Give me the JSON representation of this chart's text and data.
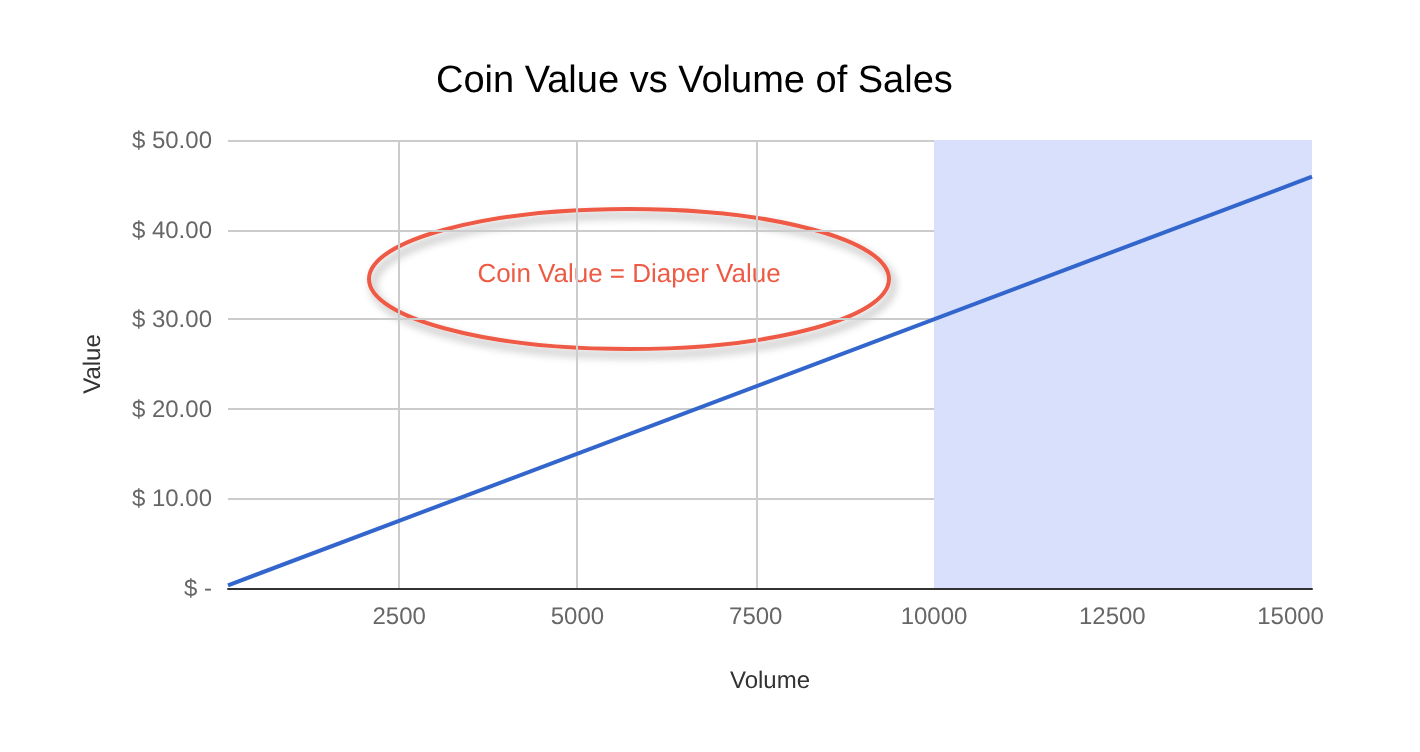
{
  "chart_data": {
    "type": "line",
    "title": "Coin Value vs Volume of Sales",
    "xlabel": "Volume",
    "ylabel": "Value",
    "x": [
      100,
      15300
    ],
    "series": [
      {
        "color": "#3366cc",
        "values": [
          0.3,
          45.9
        ]
      }
    ],
    "xlim": [
      100,
      15300
    ],
    "xticks": [
      2500,
      5000,
      7500,
      10000,
      12500,
      15000
    ],
    "ylim": [
      0,
      50
    ],
    "yticks": [
      {
        "value": 0,
        "label": "$ -"
      },
      {
        "value": 10,
        "label": "$ 10.00"
      },
      {
        "value": 20,
        "label": "$ 20.00"
      },
      {
        "value": 30,
        "label": "$ 30.00"
      },
      {
        "value": 40,
        "label": "$ 40.00"
      },
      {
        "value": 50,
        "label": "$ 50.00"
      }
    ],
    "bands": [
      {
        "axis": "x",
        "from": 10000,
        "to": 15300,
        "color": "#d9e0fc"
      }
    ],
    "annotations": [
      "Coin Value = Diaper Value"
    ],
    "grid": true,
    "marker": "none",
    "line_style": "solid"
  }
}
